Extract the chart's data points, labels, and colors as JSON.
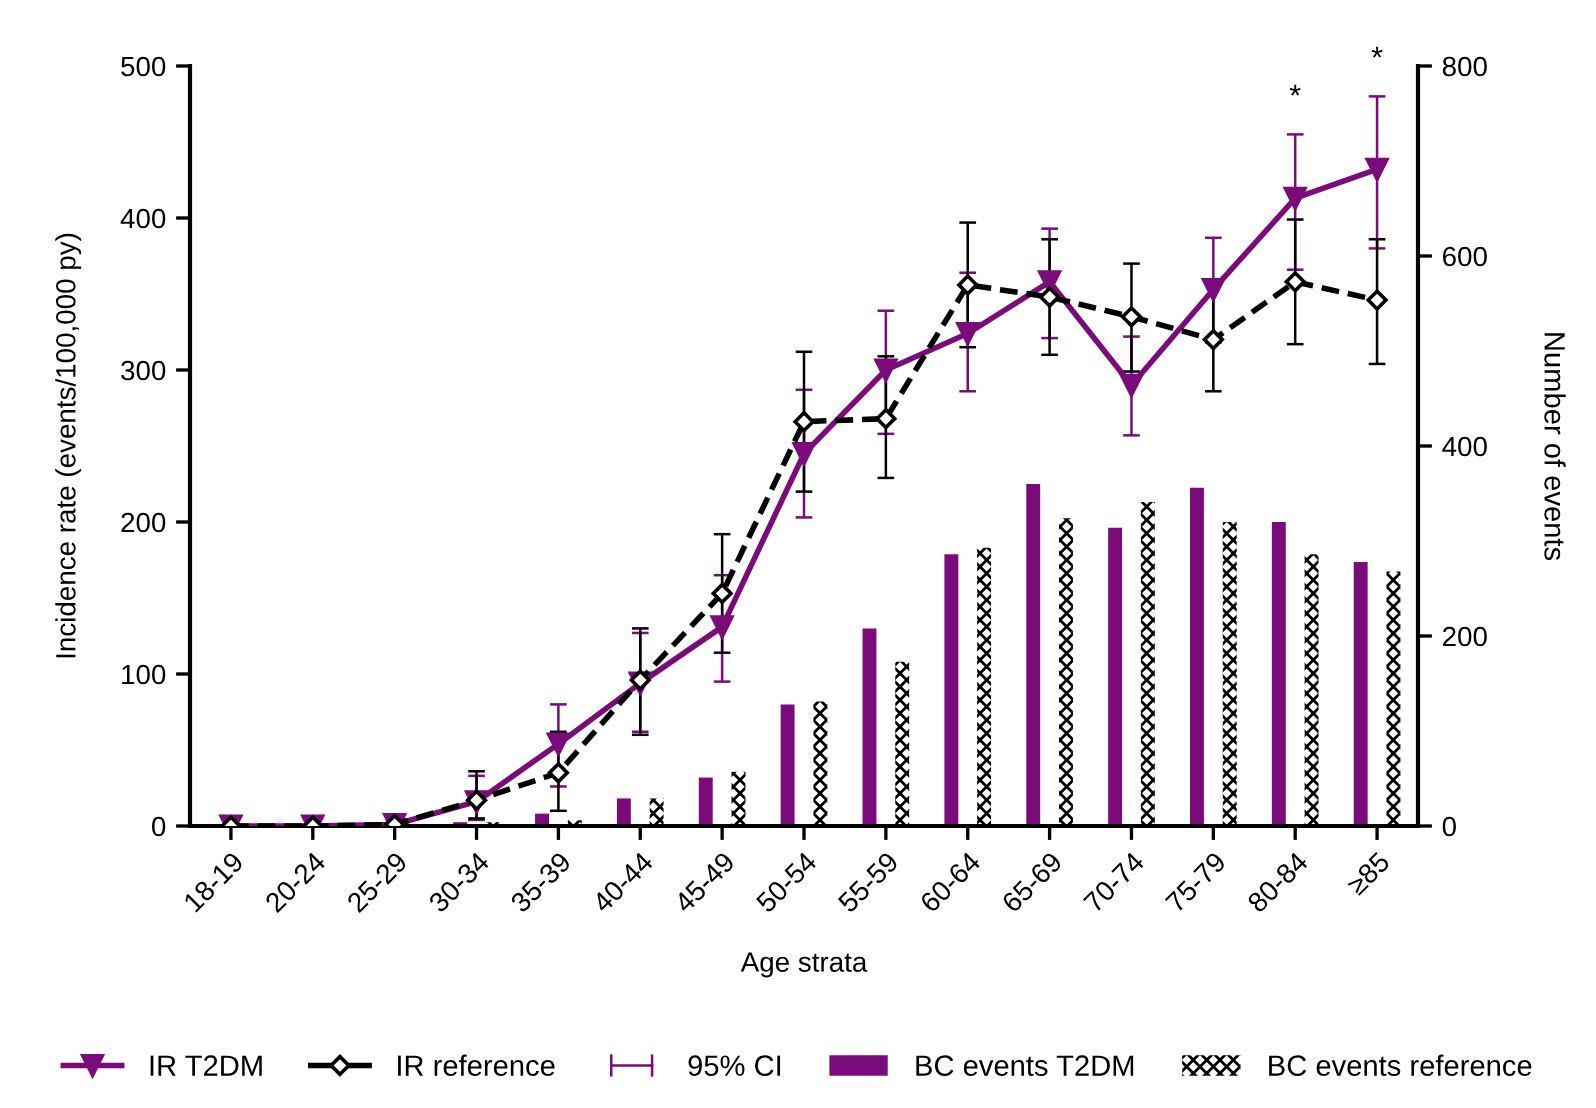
{
  "chart_data": {
    "type": "line",
    "xlabel": "Age strata",
    "ylabel": "Incidence rate (events/100,000 py)",
    "y2label": "Number of events",
    "categories": [
      "18-19",
      "20-24",
      "25-29",
      "30-34",
      "35-39",
      "40-44",
      "45-49",
      "50-54",
      "55-59",
      "60-64",
      "65-69",
      "70-74",
      "75-79",
      "80-84",
      "≥85"
    ],
    "ylim": [
      0,
      500
    ],
    "yticks": [
      0,
      100,
      200,
      300,
      400,
      500
    ],
    "y2lim": [
      0,
      800
    ],
    "y2ticks": [
      0,
      200,
      400,
      600,
      800
    ],
    "series": [
      {
        "name": "IR T2DM",
        "color": "#7b0b7b",
        "marker": "triangle",
        "line_style": "solid",
        "values": [
          0,
          0,
          1,
          16,
          54,
          94,
          131,
          245,
          300,
          324,
          358,
          290,
          353,
          413,
          432
        ],
        "errors": [
          null,
          null,
          null,
          [
            4,
            33
          ],
          [
            26,
            80
          ],
          [
            62,
            127
          ],
          [
            95,
            165
          ],
          [
            203,
            287
          ],
          [
            258,
            339
          ],
          [
            286,
            364
          ],
          [
            321,
            393
          ],
          [
            257,
            322
          ],
          [
            318,
            387
          ],
          [
            366,
            455
          ],
          [
            380,
            480
          ]
        ]
      },
      {
        "name": "IR reference",
        "color": "#000000",
        "marker": "diamond",
        "line_style": "dashed",
        "values": [
          0,
          0,
          1,
          17,
          35,
          96,
          153,
          266,
          268,
          356,
          348,
          335,
          320,
          358,
          346
        ],
        "errors": [
          null,
          null,
          null,
          [
            5,
            36
          ],
          [
            10,
            62
          ],
          [
            60,
            130
          ],
          [
            114,
            192
          ],
          [
            220,
            312
          ],
          [
            229,
            309
          ],
          [
            315,
            397
          ],
          [
            310,
            386
          ],
          [
            299,
            370
          ],
          [
            286,
            358
          ],
          [
            317,
            399
          ],
          [
            304,
            386
          ]
        ]
      },
      {
        "name": "BC events T2DM",
        "type": "bar",
        "axis": "y2",
        "color": "#7b0b7b",
        "values": [
          null,
          null,
          null,
          4,
          13,
          29,
          51,
          128,
          208,
          286,
          360,
          314,
          356,
          320,
          278
        ]
      },
      {
        "name": "BC events reference",
        "type": "bar",
        "axis": "y2",
        "color": "#000000",
        "values": [
          null,
          null,
          null,
          4,
          6,
          29,
          57,
          131,
          173,
          293,
          324,
          341,
          320,
          286,
          268
        ]
      }
    ],
    "annotations": [
      "95% CI",
      {
        "text": "*",
        "x": "80-84",
        "y": 455
      },
      {
        "text": "*",
        "x": "≥85",
        "y": 480
      }
    ],
    "legend": "bottom",
    "grid": false
  }
}
